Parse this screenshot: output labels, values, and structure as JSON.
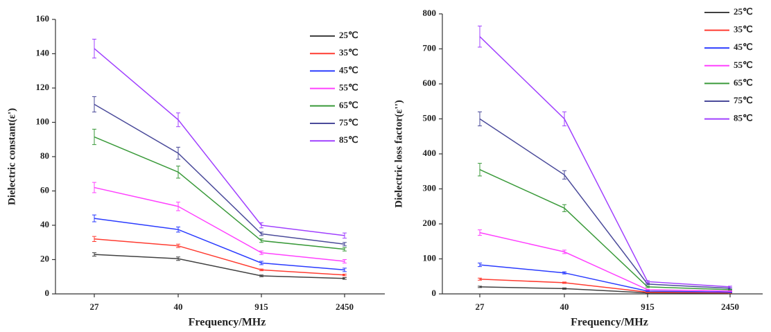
{
  "chart_data": [
    {
      "type": "line",
      "x_label": "Frequency/MHz",
      "y_label": "Dielectric constant(ε')",
      "categories": [
        "27",
        "40",
        "915",
        "2450"
      ],
      "ylim": [
        0,
        160
      ],
      "yticks": [
        0,
        20,
        40,
        60,
        80,
        100,
        120,
        140,
        160
      ],
      "grid": false,
      "legend": "upper right",
      "series": [
        {
          "name": "25℃",
          "color": "#404040",
          "values": [
            23,
            20.5,
            10.5,
            9
          ],
          "errors": [
            1,
            1,
            0.5,
            0.5
          ]
        },
        {
          "name": "35℃",
          "color": "#ff3b30",
          "values": [
            32,
            28,
            14,
            11
          ],
          "errors": [
            1.5,
            1,
            0.5,
            0.5
          ]
        },
        {
          "name": "45℃",
          "color": "#2a3bff",
          "values": [
            44,
            37.5,
            18,
            14
          ],
          "errors": [
            2,
            1.5,
            1,
            1
          ]
        },
        {
          "name": "55℃",
          "color": "#ff40ff",
          "values": [
            62,
            51,
            24,
            19
          ],
          "errors": [
            3,
            2.5,
            1,
            1
          ]
        },
        {
          "name": "65℃",
          "color": "#3a9a3a",
          "values": [
            91.5,
            71,
            31,
            26
          ],
          "errors": [
            4.5,
            3.5,
            1,
            1
          ]
        },
        {
          "name": "75℃",
          "color": "#4a4a9a",
          "values": [
            110.5,
            82,
            35,
            29
          ],
          "errors": [
            4.5,
            3.5,
            1,
            1
          ]
        },
        {
          "name": "85℃",
          "color": "#a040ff",
          "values": [
            143,
            101.5,
            40,
            34
          ],
          "errors": [
            5.5,
            4,
            1.5,
            1.5
          ]
        }
      ]
    },
    {
      "type": "line",
      "x_label": "Frequency/MHz",
      "y_label": "Dielectric loss factor(ε'')",
      "categories": [
        "27",
        "40",
        "915",
        "2450"
      ],
      "ylim": [
        0,
        800
      ],
      "yticks": [
        0,
        100,
        200,
        300,
        400,
        500,
        600,
        700,
        800
      ],
      "grid": false,
      "legend": "upper right",
      "series": [
        {
          "name": "25℃",
          "color": "#404040",
          "values": [
            20,
            15,
            3,
            2
          ],
          "errors": [
            2,
            2,
            1,
            1
          ]
        },
        {
          "name": "35℃",
          "color": "#ff3b30",
          "values": [
            42,
            32,
            5,
            3
          ],
          "errors": [
            3,
            2,
            1,
            1
          ]
        },
        {
          "name": "45℃",
          "color": "#2a3bff",
          "values": [
            83,
            60,
            8,
            5
          ],
          "errors": [
            5,
            3,
            1,
            1
          ]
        },
        {
          "name": "55℃",
          "color": "#ff40ff",
          "values": [
            175,
            120,
            12,
            8
          ],
          "errors": [
            8,
            5,
            1,
            1
          ]
        },
        {
          "name": "65℃",
          "color": "#3a9a3a",
          "values": [
            355,
            245,
            20,
            12
          ],
          "errors": [
            18,
            10,
            2,
            1
          ]
        },
        {
          "name": "75℃",
          "color": "#4a4a9a",
          "values": [
            500,
            340,
            28,
            16
          ],
          "errors": [
            20,
            12,
            2,
            2
          ]
        },
        {
          "name": "85℃",
          "color": "#a040ff",
          "values": [
            735,
            500,
            35,
            20
          ],
          "errors": [
            30,
            20,
            3,
            2
          ]
        }
      ]
    }
  ]
}
